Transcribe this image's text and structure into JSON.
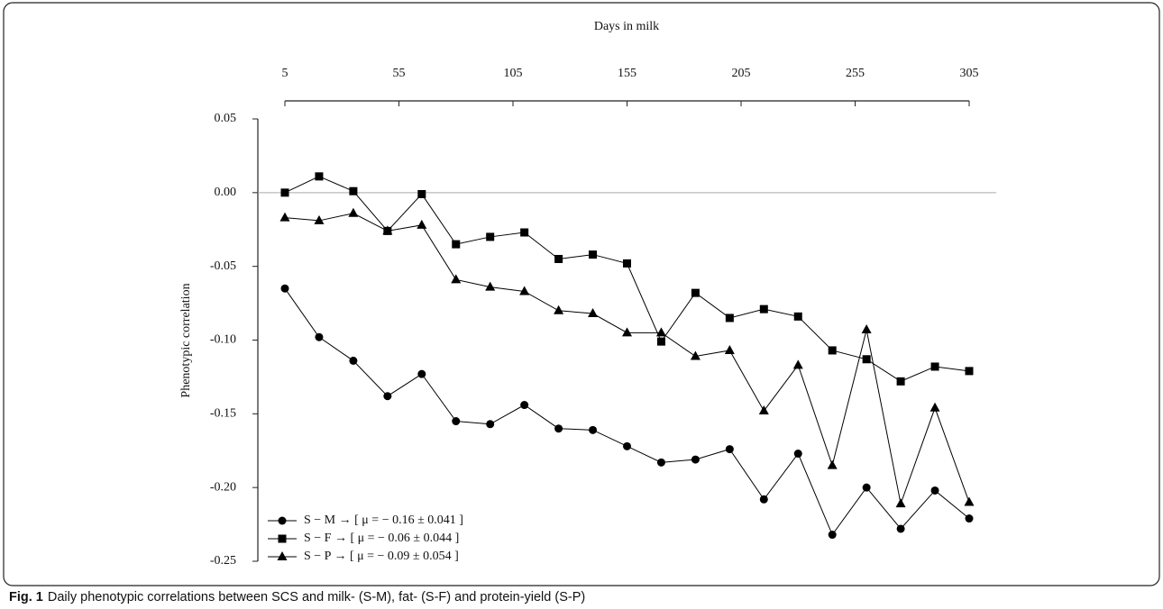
{
  "chart_data": {
    "type": "line",
    "caption_label": "Fig. 1",
    "caption": "Daily phenotypic correlations between SCS and milk- (S-M), fat- (S-F) and protein-yield (S-P)",
    "xlabel": "Days in milk",
    "ylabel": "Phenotypic correlation",
    "x": [
      5,
      20,
      35,
      50,
      65,
      80,
      95,
      110,
      125,
      140,
      155,
      170,
      185,
      200,
      215,
      230,
      245,
      260,
      275,
      290,
      305
    ],
    "xlim": [
      5,
      305
    ],
    "xticks": [
      5,
      55,
      105,
      155,
      205,
      255,
      305
    ],
    "ylim": [
      -0.25,
      0.05
    ],
    "yticks": [
      0.05,
      {
        "value": 0,
        "label": "0.00"
      },
      -0.05,
      {
        "value": -0.1,
        "label": "-0.10"
      },
      -0.15,
      {
        "value": -0.2,
        "label": "-0.20"
      },
      -0.25
    ],
    "zero_line": true,
    "legend": "lower left",
    "series": [
      {
        "name": "S − M → [ μ = − 0.16 ± 0.041 ]",
        "color": "#000000",
        "marker": "circle",
        "values": [
          -0.065,
          -0.098,
          -0.114,
          -0.138,
          -0.123,
          -0.155,
          -0.157,
          -0.144,
          -0.16,
          -0.161,
          -0.172,
          -0.183,
          -0.181,
          -0.174,
          -0.208,
          -0.177,
          -0.232,
          -0.2,
          -0.228,
          -0.202,
          -0.221
        ]
      },
      {
        "name": "S − F → [ μ = − 0.06 ± 0.044 ]",
        "color": "#000000",
        "marker": "square",
        "values": [
          0.0,
          0.011,
          0.001,
          -0.026,
          -0.001,
          -0.035,
          -0.03,
          -0.027,
          -0.045,
          -0.042,
          -0.048,
          -0.101,
          -0.068,
          -0.085,
          -0.079,
          -0.084,
          -0.107,
          -0.113,
          -0.128,
          -0.118,
          -0.121
        ]
      },
      {
        "name": "S − P → [ μ = − 0.09 ± 0.054 ]",
        "color": "#000000",
        "marker": "triangle",
        "values": [
          -0.017,
          -0.019,
          -0.014,
          -0.026,
          -0.022,
          -0.059,
          -0.064,
          -0.067,
          -0.08,
          -0.082,
          -0.095,
          -0.095,
          -0.111,
          -0.107,
          -0.148,
          -0.117,
          -0.185,
          -0.093,
          -0.211,
          -0.146,
          -0.21
        ]
      }
    ]
  }
}
